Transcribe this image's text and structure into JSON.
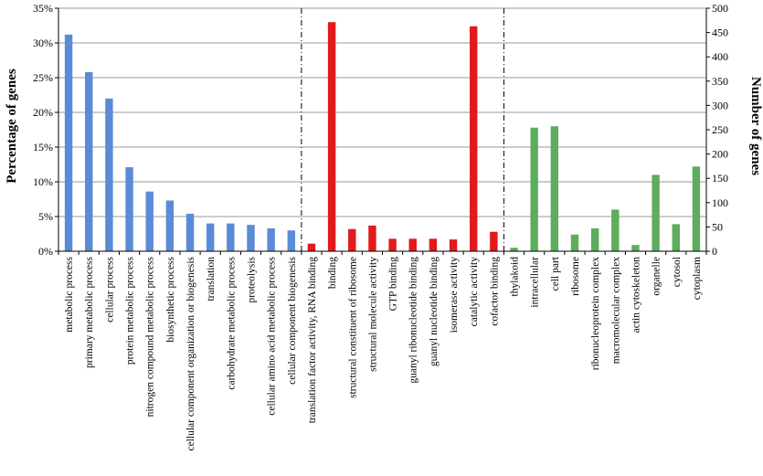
{
  "chart_data": {
    "type": "bar",
    "title": "",
    "ylabel_left": "Percentage of genes",
    "ylabel_right": "Number of genes",
    "ylim_left": [
      0,
      35
    ],
    "ylim_right": [
      0,
      500
    ],
    "yticks_left": [
      "0%",
      "5%",
      "10%",
      "15%",
      "20%",
      "25%",
      "30%",
      "35%"
    ],
    "yticks_right": [
      "0",
      "50",
      "100",
      "150",
      "200",
      "250",
      "300",
      "350",
      "400",
      "450",
      "500"
    ],
    "grid": true,
    "legend": "none",
    "groups": [
      {
        "color": "#5B8BD6",
        "categories": [
          "metabolic process",
          "primary metabolic process",
          "cellular process",
          "protein metabolic process",
          "nitrogen compound metabolic process",
          "biosynthetic process",
          "cellular component organization or biogenesis",
          "translation",
          "carbohydrate metabolic process",
          "proteolysis",
          "cellular amino acid metabolic process",
          "cellular component biogenesis"
        ],
        "values": [
          31.2,
          25.8,
          22.0,
          12.1,
          8.6,
          7.3,
          5.4,
          4.0,
          4.0,
          3.8,
          3.3,
          3.0
        ]
      },
      {
        "color": "#E21A1C",
        "categories": [
          "translation factor activity, RNA binding",
          "binding",
          "structural constituent of ribosome",
          "structural molecule activity",
          "GTP binding",
          "guanyl ribonucleotide binding",
          "guanyl nucleotide binding",
          "isomerase activity",
          "catalytic activity",
          "cofactor binding"
        ],
        "values": [
          1.1,
          33.0,
          3.2,
          3.7,
          1.8,
          1.8,
          1.8,
          1.7,
          32.4,
          2.8
        ]
      },
      {
        "color": "#5DAD5C",
        "categories": [
          "thylakoid",
          "intracellular",
          "cell part",
          "ribosome",
          "ribonucleoprotein complex",
          "macromolecular complex",
          "actin cytoskeleton",
          "organelle",
          "cytosol",
          "cytoplasm"
        ],
        "values": [
          0.5,
          17.8,
          18.0,
          2.4,
          3.3,
          6.0,
          0.9,
          11.0,
          3.9,
          12.2
        ]
      }
    ]
  }
}
